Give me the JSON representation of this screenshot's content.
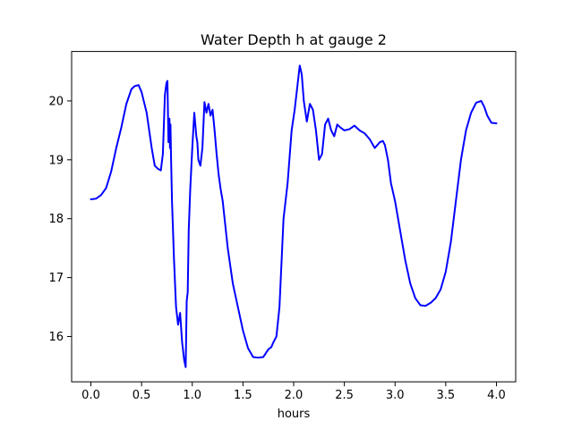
{
  "chart_data": {
    "type": "line",
    "title": "Water Depth h at gauge 2",
    "xlabel": "hours",
    "ylabel": "",
    "xlim": [
      -0.19,
      4.19
    ],
    "ylim": [
      15.23,
      20.84
    ],
    "xticks": [
      0.0,
      0.5,
      1.0,
      1.5,
      2.0,
      2.5,
      3.0,
      3.5,
      4.0
    ],
    "xtick_labels": [
      "0.0",
      "0.5",
      "1.0",
      "1.5",
      "2.0",
      "2.5",
      "3.0",
      "3.5",
      "4.0"
    ],
    "yticks": [
      16,
      17,
      18,
      19,
      20
    ],
    "ytick_labels": [
      "16",
      "17",
      "18",
      "19",
      "20"
    ],
    "grid": false,
    "legend": false,
    "series": [
      {
        "color": "#0000ff",
        "x": [
          0.0,
          0.05,
          0.1,
          0.15,
          0.2,
          0.25,
          0.3,
          0.35,
          0.4,
          0.43,
          0.47,
          0.5,
          0.55,
          0.6,
          0.63,
          0.66,
          0.69,
          0.71,
          0.73,
          0.745,
          0.755,
          0.765,
          0.775,
          0.78,
          0.785,
          0.79,
          0.8,
          0.82,
          0.84,
          0.86,
          0.88,
          0.9,
          0.92,
          0.935,
          0.945,
          0.955,
          0.965,
          0.98,
          1.0,
          1.02,
          1.04,
          1.05,
          1.06,
          1.08,
          1.1,
          1.12,
          1.14,
          1.16,
          1.18,
          1.2,
          1.22,
          1.24,
          1.26,
          1.28,
          1.3,
          1.35,
          1.4,
          1.45,
          1.5,
          1.55,
          1.6,
          1.65,
          1.7,
          1.75,
          1.78,
          1.8,
          1.83,
          1.86,
          1.9,
          1.94,
          1.98,
          2.01,
          2.04,
          2.06,
          2.08,
          2.1,
          2.13,
          2.16,
          2.19,
          2.22,
          2.25,
          2.28,
          2.31,
          2.34,
          2.37,
          2.4,
          2.43,
          2.46,
          2.5,
          2.55,
          2.6,
          2.65,
          2.7,
          2.75,
          2.8,
          2.85,
          2.88,
          2.9,
          2.93,
          2.96,
          3.0,
          3.05,
          3.1,
          3.15,
          3.2,
          3.25,
          3.3,
          3.35,
          3.4,
          3.45,
          3.5,
          3.55,
          3.6,
          3.65,
          3.7,
          3.75,
          3.8,
          3.85,
          3.88,
          3.91,
          3.95,
          4.0
        ],
        "y": [
          18.33,
          18.34,
          18.4,
          18.52,
          18.8,
          19.2,
          19.55,
          19.95,
          20.2,
          20.25,
          20.27,
          20.15,
          19.8,
          19.2,
          18.9,
          18.85,
          18.82,
          19.1,
          20.1,
          20.3,
          20.34,
          19.3,
          19.7,
          19.2,
          19.6,
          19.1,
          18.3,
          17.3,
          16.5,
          16.2,
          16.4,
          15.9,
          15.6,
          15.48,
          16.6,
          16.75,
          17.8,
          18.5,
          19.2,
          19.8,
          19.4,
          19.3,
          19.0,
          18.9,
          19.2,
          19.98,
          19.8,
          19.95,
          19.75,
          19.85,
          19.5,
          19.1,
          18.75,
          18.5,
          18.3,
          17.5,
          16.9,
          16.5,
          16.1,
          15.8,
          15.65,
          15.64,
          15.65,
          15.78,
          15.82,
          15.9,
          16.0,
          16.5,
          18.0,
          18.6,
          19.5,
          19.85,
          20.3,
          20.6,
          20.45,
          20.0,
          19.65,
          19.95,
          19.85,
          19.5,
          19.0,
          19.1,
          19.6,
          19.7,
          19.5,
          19.4,
          19.6,
          19.55,
          19.5,
          19.52,
          19.58,
          19.5,
          19.45,
          19.35,
          19.2,
          19.3,
          19.32,
          19.25,
          19.0,
          18.6,
          18.3,
          17.8,
          17.3,
          16.9,
          16.65,
          16.53,
          16.52,
          16.57,
          16.65,
          16.8,
          17.1,
          17.6,
          18.3,
          19.0,
          19.5,
          19.8,
          19.97,
          20.0,
          19.9,
          19.75,
          19.63,
          19.62
        ]
      }
    ]
  }
}
